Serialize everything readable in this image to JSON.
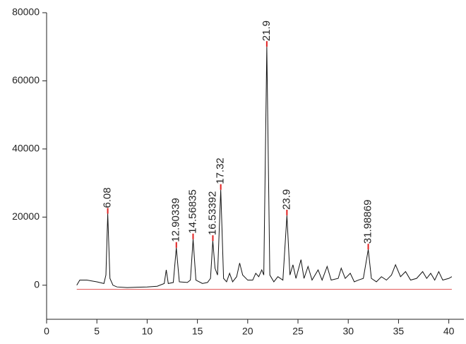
{
  "chart_data": {
    "type": "line",
    "x": [
      3,
      3.3,
      4,
      5,
      5.7,
      5.9,
      6.08,
      6.3,
      6.6,
      7,
      8,
      9,
      10,
      11,
      11.7,
      11.9,
      12.1,
      12.6,
      12.9,
      13.2,
      14,
      14.3,
      14.57,
      14.85,
      15.5,
      16,
      16.3,
      16.53,
      16.75,
      17.0,
      17.32,
      17.6,
      17.9,
      18.2,
      18.5,
      18.9,
      19.2,
      19.5,
      20,
      20.5,
      20.8,
      21.1,
      21.4,
      21.6,
      21.9,
      22.2,
      22.6,
      23,
      23.5,
      23.9,
      24.2,
      24.5,
      24.8,
      25.3,
      25.6,
      26,
      26.4,
      27,
      27.4,
      27.9,
      28.3,
      29,
      29.3,
      29.7,
      30.2,
      30.6,
      31,
      31.5,
      31.99,
      32.3,
      32.8,
      33.3,
      33.8,
      34.3,
      34.7,
      35.2,
      35.7,
      36.2,
      36.8,
      37.4,
      37.8,
      38.2,
      38.6,
      39,
      39.4,
      40,
      40.3
    ],
    "series": [
      {
        "color": "#111111",
        "values": [
          0,
          1500,
          1500,
          1000,
          500,
          3000,
          21000,
          2000,
          0,
          -500,
          -700,
          -600,
          -500,
          -300,
          500,
          4500,
          500,
          800,
          11000,
          1000,
          800,
          1500,
          13500,
          1500,
          500,
          800,
          2000,
          13000,
          5000,
          3000,
          28000,
          2000,
          1000,
          3500,
          1000,
          2500,
          6500,
          3000,
          1500,
          1500,
          3500,
          2500,
          4500,
          3000,
          70000,
          3000,
          1000,
          2500,
          1500,
          20500,
          3000,
          6000,
          2000,
          7500,
          2000,
          5500,
          1500,
          4500,
          1500,
          5500,
          1500,
          2000,
          5000,
          2000,
          3500,
          1000,
          1500,
          2000,
          10500,
          2000,
          1000,
          2500,
          1500,
          3000,
          6000,
          2500,
          4000,
          1500,
          2000,
          4000,
          2000,
          3500,
          1500,
          4000,
          1500,
          2000,
          2500
        ]
      }
    ],
    "peaks": {
      "color": "#e02020",
      "x": [
        6.08,
        12.90339,
        14.56835,
        16.53392,
        17.32,
        21.9,
        23.9,
        31.98869
      ],
      "y": [
        21000,
        11000,
        13500,
        13000,
        28000,
        70000,
        20500,
        10500
      ],
      "labels": [
        "6.08",
        "12.90339",
        "14.56835",
        "16.53392",
        "17.32",
        "21.9",
        "23.9",
        "31.98869"
      ]
    },
    "baseline": {
      "color": "#e05050",
      "x": [
        3,
        40.3
      ],
      "y": [
        -1200,
        -1200
      ]
    },
    "xlim": [
      0,
      41.5
    ],
    "xticks": [
      0,
      5,
      10,
      15,
      20,
      25,
      30,
      35,
      40
    ],
    "ylim": [
      -10000,
      80000
    ],
    "yticks": [
      0,
      20000,
      40000,
      60000,
      80000
    ]
  }
}
